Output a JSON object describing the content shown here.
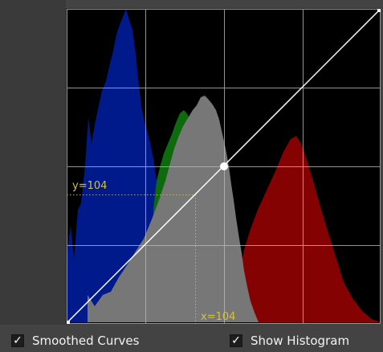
{
  "curve_editor": {
    "readout_y": "y=104",
    "readout_x": "x=104",
    "selected_point": {
      "x": 104,
      "y": 104
    },
    "curve_start": {
      "x": 0,
      "y": 0
    },
    "curve_end": {
      "x": 255,
      "y": 255
    },
    "colors": {
      "blue_histogram": "#001a8c",
      "green_histogram": "#0d6b0d",
      "red_histogram": "#850202",
      "luminance_histogram": "#777777",
      "grid": "#b8b8b8",
      "curve": "#ffffff",
      "readout": "#d4c23a"
    }
  },
  "options": {
    "smoothed_curves": {
      "label": "Smoothed Curves",
      "checked": true,
      "mark": "✓"
    },
    "show_histogram": {
      "label": "Show Histogram",
      "checked": true,
      "mark": "✓"
    }
  }
}
